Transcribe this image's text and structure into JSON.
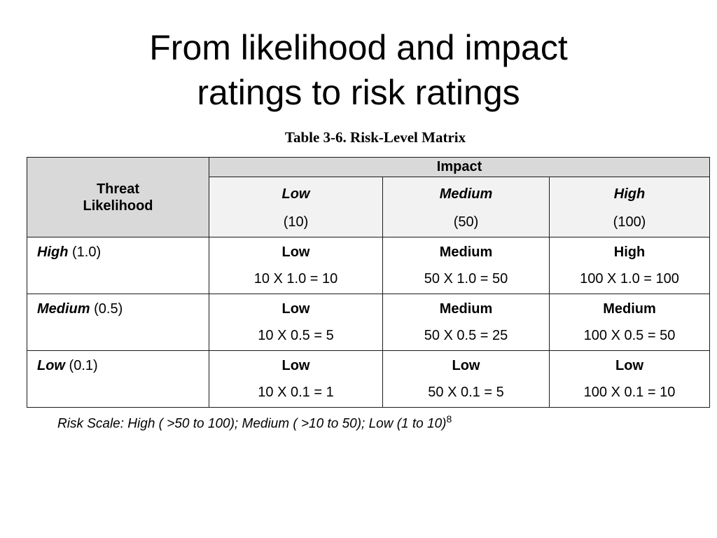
{
  "slide": {
    "title_line1": "From likelihood and impact",
    "title_line2": "ratings to risk ratings"
  },
  "table": {
    "caption": "Table 3-6.  Risk-Level Matrix",
    "corner_line1": "Threat",
    "corner_line2": "Likelihood",
    "impact_header": "Impact",
    "columns": [
      {
        "level": "Low",
        "value": "(10)"
      },
      {
        "level": "Medium",
        "value": "(50)"
      },
      {
        "level": "High",
        "value": "(100)"
      }
    ],
    "rows": [
      {
        "level": "High",
        "value": " (1.0)",
        "cells": [
          {
            "rating": "Low",
            "calc": "10 X 1.0 = 10"
          },
          {
            "rating": "Medium",
            "calc": "50 X 1.0 = 50"
          },
          {
            "rating": "High",
            "calc": "100 X 1.0 = 100"
          }
        ]
      },
      {
        "level": "Medium",
        "value": " (0.5)",
        "cells": [
          {
            "rating": "Low",
            "calc": "10 X 0.5 = 5"
          },
          {
            "rating": "Medium",
            "calc": "50 X 0.5 = 25"
          },
          {
            "rating": "Medium",
            "calc": "100 X 0.5 = 50"
          }
        ]
      },
      {
        "level": "Low",
        "value": " (0.1)",
        "cells": [
          {
            "rating": "Low",
            "calc": "10 X 0.1 = 1"
          },
          {
            "rating": "Low",
            "calc": "50 X 0.1 =  5"
          },
          {
            "rating": "Low",
            "calc": "100 X 0.1 = 10"
          }
        ]
      }
    ]
  },
  "footnote": {
    "text": "Risk Scale:  High ( >50 to 100);  Medium ( >10 to 50);  Low (1 to 10)",
    "superscript": "8"
  }
}
